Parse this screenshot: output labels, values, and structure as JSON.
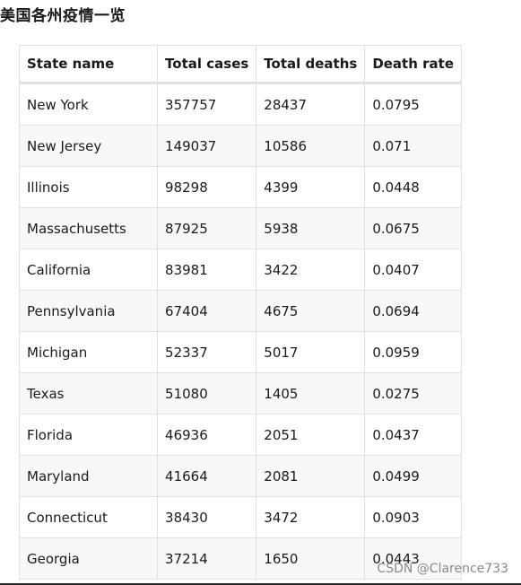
{
  "title": "美国各州疫情一览",
  "table": {
    "headers": [
      "State name",
      "Total cases",
      "Total deaths",
      "Death rate"
    ],
    "rows": [
      [
        "New York",
        "357757",
        "28437",
        "0.0795"
      ],
      [
        "New Jersey",
        "149037",
        "10586",
        "0.071"
      ],
      [
        "Illinois",
        "98298",
        "4399",
        "0.0448"
      ],
      [
        "Massachusetts",
        "87925",
        "5938",
        "0.0675"
      ],
      [
        "California",
        "83981",
        "3422",
        "0.0407"
      ],
      [
        "Pennsylvania",
        "67404",
        "4675",
        "0.0694"
      ],
      [
        "Michigan",
        "52337",
        "5017",
        "0.0959"
      ],
      [
        "Texas",
        "51080",
        "1405",
        "0.0275"
      ],
      [
        "Florida",
        "46936",
        "2051",
        "0.0437"
      ],
      [
        "Maryland",
        "41664",
        "2081",
        "0.0499"
      ],
      [
        "Connecticut",
        "38430",
        "3472",
        "0.0903"
      ],
      [
        "Georgia",
        "37214",
        "1650",
        "0.0443"
      ]
    ]
  },
  "watermark": "CSDN @Clarence733"
}
